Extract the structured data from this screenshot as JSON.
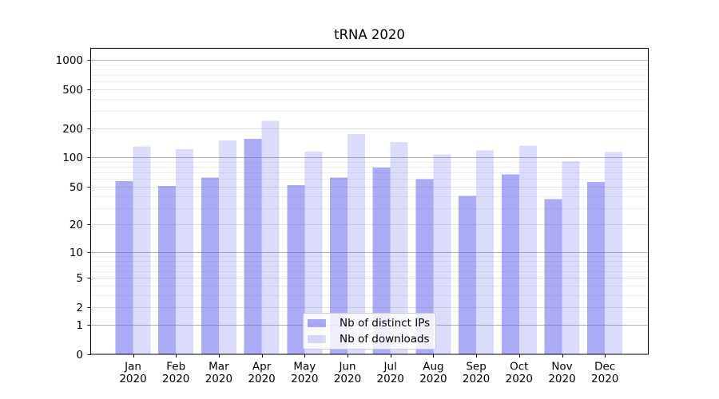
{
  "figure": {
    "background": "#ffffff",
    "axis_color": "#000000",
    "text_color": "#000000"
  },
  "chart_data": {
    "type": "bar",
    "title": "tRNA 2020",
    "x": {
      "months": [
        "Jan",
        "Feb",
        "Mar",
        "Apr",
        "May",
        "Jun",
        "Jul",
        "Aug",
        "Sep",
        "Oct",
        "Nov",
        "Dec"
      ],
      "year": "2020"
    },
    "series": [
      {
        "name": "Nb of distinct IPs",
        "color": "rgba(100,100,237,0.55)",
        "values": [
          57,
          51,
          62,
          155,
          52,
          62,
          79,
          60,
          40,
          67,
          37,
          56
        ]
      },
      {
        "name": "Nb of downloads",
        "color": "rgba(100,100,237,0.23)",
        "values": [
          130,
          122,
          150,
          238,
          115,
          175,
          145,
          108,
          119,
          133,
          92,
          114
        ]
      }
    ],
    "y_axis": {
      "scale": "log1p",
      "ticks": [
        0,
        1,
        2,
        5,
        10,
        20,
        50,
        100,
        200,
        500,
        1000
      ],
      "ylim": [
        0,
        1300
      ]
    },
    "grid": {
      "enabled": true,
      "major_color": "#b0b0b0",
      "mid_color": "#e1e1e1",
      "minor_color": "#ededed"
    },
    "legend": {
      "position": "lower-center"
    }
  }
}
